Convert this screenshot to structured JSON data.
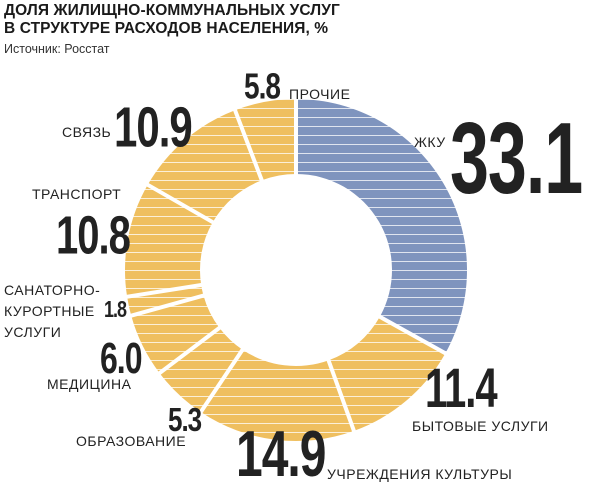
{
  "header": {
    "title_line1": "ДОЛЯ ЖИЛИЩНО-КОММУНАЛЬНЫХ УСЛУГ",
    "title_line2": "В СТРУКТУРЕ РАСХОДОВ НАСЕЛЕНИЯ, %",
    "source": "Источник: Росстат"
  },
  "colors": {
    "main": "#7f94be",
    "other": "#efbf5f",
    "stripe": "#ffffff",
    "divider": "#ffffff"
  },
  "chart_data": {
    "type": "pie",
    "title": "ДОЛЯ ЖИЛИЩНО-КОММУНАЛЬНЫХ УСЛУГ В СТРУКТУРЕ РАСХОДОВ НАСЕЛЕНИЯ, %",
    "donut": true,
    "slices": [
      {
        "label": "ЖКУ",
        "value": 33.1,
        "value_label": "33.1"
      },
      {
        "label": "БЫТОВЫЕ УСЛУГИ",
        "value": 11.4,
        "value_label": "11.4"
      },
      {
        "label": "УЧРЕЖДЕНИЯ КУЛЬТУРЫ",
        "value": 14.9,
        "value_label": "14.9"
      },
      {
        "label": "ОБРАЗОВАНИЕ",
        "value": 5.3,
        "value_label": "5.3"
      },
      {
        "label": "МЕДИЦИНА",
        "value": 6.0,
        "value_label": "6.0"
      },
      {
        "label": "САНАТОРНО-КУРОРТНЫЕ УСЛУГИ",
        "label_lines": [
          "САНАТОРНО-",
          "КУРОРТНЫЕ",
          "УСЛУГИ"
        ],
        "value": 1.8,
        "value_label": "1.8"
      },
      {
        "label": "ТРАНСПОРТ",
        "value": 10.8,
        "value_label": "10.8"
      },
      {
        "label": "СВЯЗЬ",
        "value": 10.9,
        "value_label": "10.9"
      },
      {
        "label": "ПРОЧИЕ",
        "value": 5.8,
        "value_label": "5.8"
      }
    ]
  }
}
